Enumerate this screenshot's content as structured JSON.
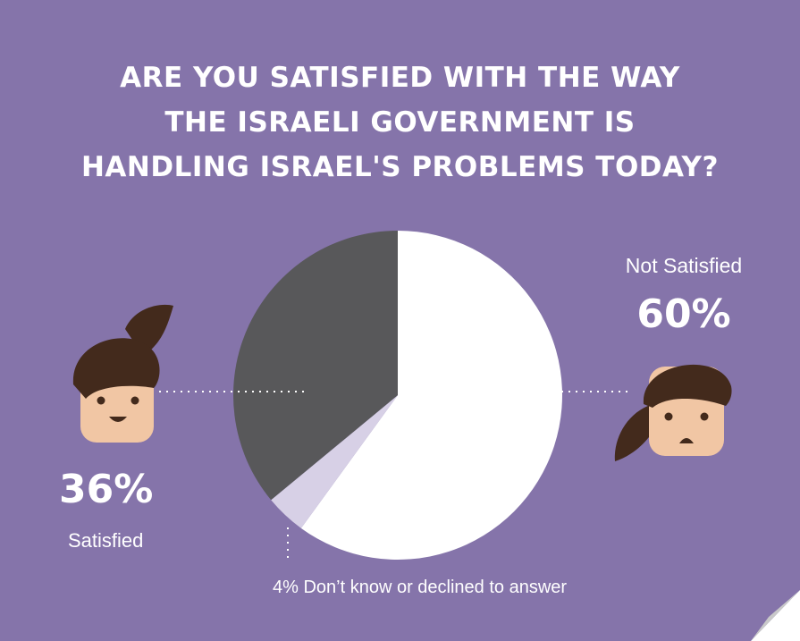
{
  "title_lines": [
    "ARE YOU SATISFIED WITH THE WAY",
    "THE ISRAELI GOVERNMENT IS",
    "HANDLING ISRAEL'S PROBLEMS TODAY?"
  ],
  "colors": {
    "background": "#8574aa",
    "not_satisfied": "#ffffff",
    "satisfied": "#58585a",
    "dont_know": "#d7d0e6",
    "hair": "#432a1c",
    "skin": "#f1c6a4"
  },
  "labels": {
    "not_satisfied_label": "Not Satisfied",
    "not_satisfied_pct": "60%",
    "satisfied_pct": "36%",
    "satisfied_label": "Satisfied",
    "dont_know": "4% Don’t know or declined to answer"
  },
  "chart_data": {
    "type": "pie",
    "title": "ARE YOU SATISFIED WITH THE WAY THE ISRAELI GOVERNMENT IS HANDLING ISRAEL'S PROBLEMS TODAY?",
    "slices": [
      {
        "label": "Not Satisfied",
        "value": 60
      },
      {
        "label": "Don’t know or declined to answer",
        "value": 4
      },
      {
        "label": "Satisfied",
        "value": 36
      }
    ]
  }
}
